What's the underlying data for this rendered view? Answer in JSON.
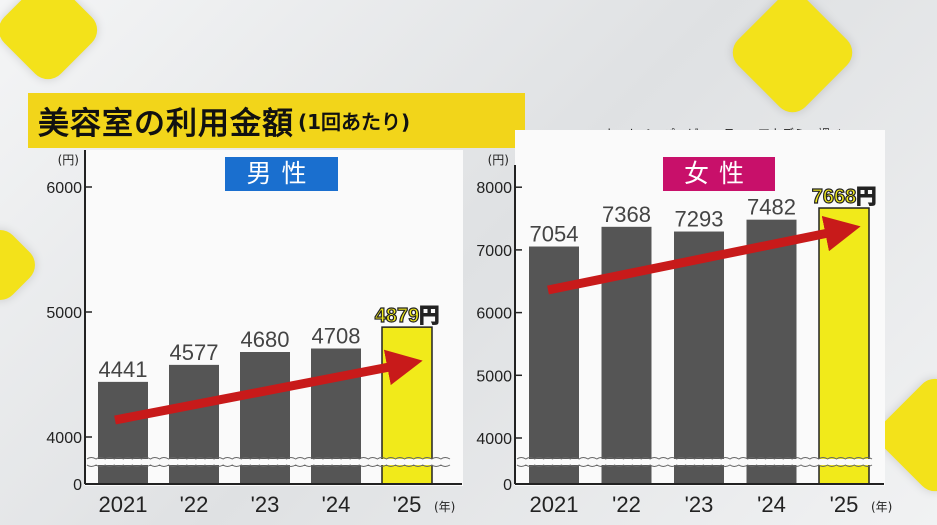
{
  "title": {
    "main": "美容室の利用金額",
    "sub": "(1回あたり)"
  },
  "source": "ホットペッパービューティーアカデミー調べ",
  "colors": {
    "bar": "#555555",
    "highlight_bar": "#f1ea1a",
    "arrow": "#c81a1a",
    "male_tag": "#1a6fcf",
    "female_tag": "#c8106a",
    "banner": "#f2d51a"
  },
  "chart_data": [
    {
      "type": "bar",
      "title": "男性",
      "ylabel": "(円)",
      "xlabel": "(年)",
      "categories": [
        "2021",
        "'22",
        "'23",
        "'24",
        "'25"
      ],
      "values": [
        4441,
        4577,
        4680,
        4708,
        4879
      ],
      "value_labels": [
        "4441",
        "4577",
        "4680",
        "4708",
        "4879円"
      ],
      "yticks": [
        "0",
        "4000",
        "5000",
        "6000"
      ],
      "ylim": [
        0,
        6000
      ],
      "axis_break": "between 0 and 4000",
      "highlight_index": 4,
      "trend_arrow": true
    },
    {
      "type": "bar",
      "title": "女性",
      "ylabel": "(円)",
      "xlabel": "(年)",
      "categories": [
        "2021",
        "'22",
        "'23",
        "'24",
        "'25"
      ],
      "values": [
        7054,
        7368,
        7293,
        7482,
        7668
      ],
      "value_labels": [
        "7054",
        "7368",
        "7293",
        "7482",
        "7668円"
      ],
      "yticks": [
        "0",
        "4000",
        "5000",
        "6000",
        "7000",
        "8000"
      ],
      "ylim": [
        0,
        8000
      ],
      "axis_break": "between 0 and 4000",
      "highlight_index": 4,
      "trend_arrow": true
    }
  ]
}
